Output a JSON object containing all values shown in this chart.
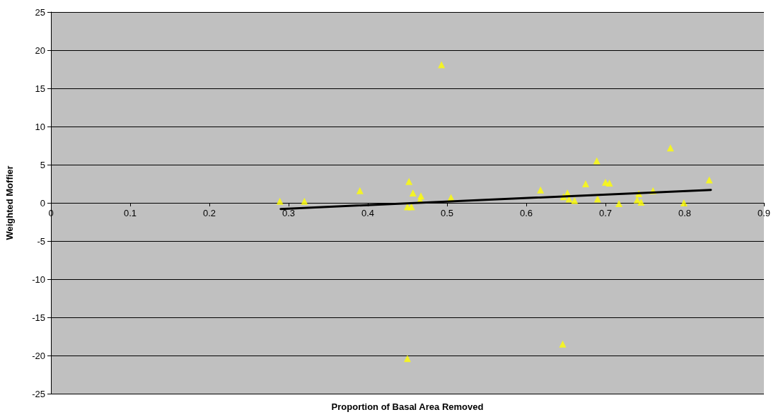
{
  "chart_data": {
    "type": "scatter",
    "xlabel": "Proportion of Basal Area Removed",
    "ylabel": "Weighted Moffier",
    "xlim": [
      0,
      0.9
    ],
    "xticks": [
      0,
      0.1,
      0.2,
      0.3,
      0.4,
      0.5,
      0.6,
      0.7,
      0.8,
      0.9
    ],
    "ylim": [
      -25,
      25
    ],
    "yticks": [
      -25,
      -20,
      -15,
      -10,
      -5,
      0,
      5,
      10,
      15,
      20,
      25
    ],
    "grid": "y",
    "marker": "triangle",
    "series": [
      {
        "color": "#ffff00",
        "x": [
          0.289,
          0.32,
          0.39,
          0.452,
          0.457,
          0.467,
          0.466,
          0.45,
          0.455,
          0.493,
          0.505,
          0.618,
          0.647,
          0.654,
          0.652,
          0.661,
          0.675,
          0.689,
          0.69,
          0.7,
          0.705,
          0.717,
          0.742,
          0.74,
          0.745,
          0.76,
          0.782,
          0.799,
          0.831,
          0.45,
          0.646
        ],
        "values": [
          0.2,
          0.2,
          1.6,
          2.8,
          1.3,
          0.9,
          0.4,
          -0.5,
          -0.5,
          18.1,
          0.7,
          1.7,
          0.8,
          0.5,
          1.3,
          0.3,
          2.5,
          5.5,
          0.5,
          2.7,
          2.6,
          -0.1,
          1.2,
          0.4,
          0.1,
          1.6,
          7.2,
          0.0,
          3.0,
          -20.4,
          -18.5
        ]
      },
      {
        "type": "line",
        "color": "#000000",
        "marker": "none",
        "line_style": "solid",
        "x": [
          0.29,
          0.833
        ],
        "values": [
          -0.8,
          1.7
        ]
      }
    ]
  }
}
